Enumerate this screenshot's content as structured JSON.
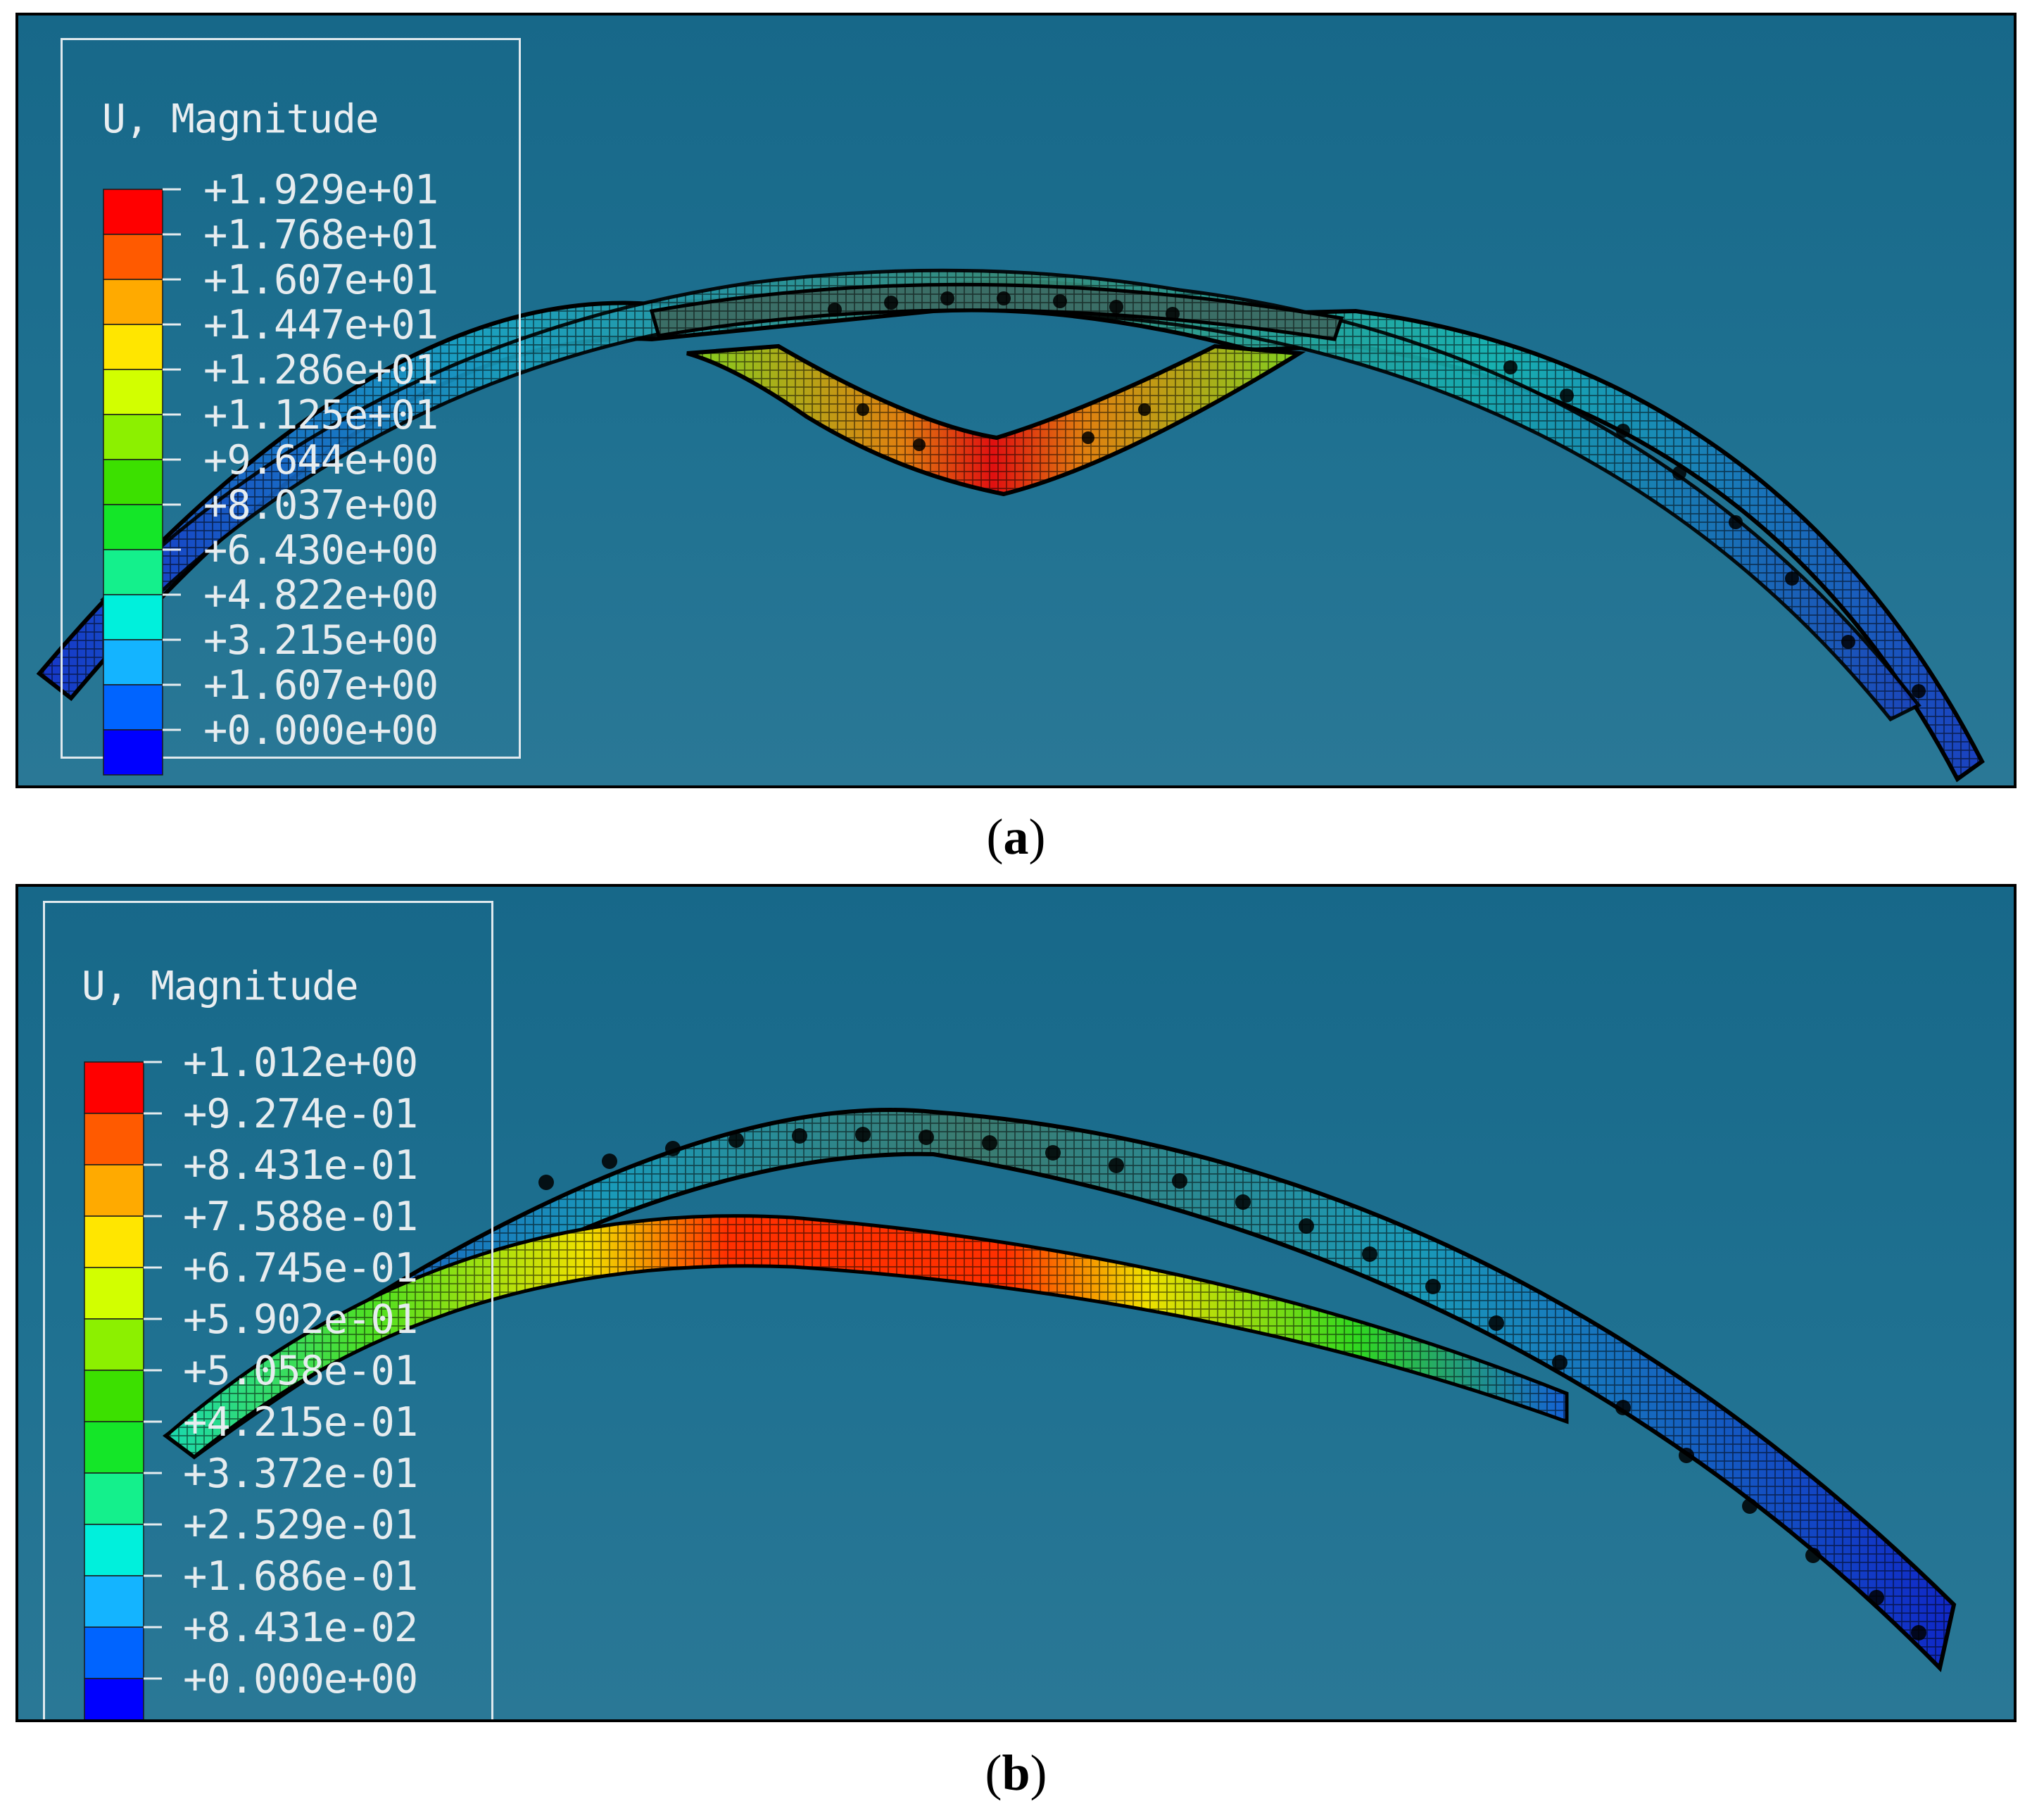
{
  "figure": {
    "panel_a": {
      "caption_letter": "a",
      "legend": {
        "title": "U, Magnitude",
        "values": [
          "+1.929e+01",
          "+1.768e+01",
          "+1.607e+01",
          "+1.447e+01",
          "+1.286e+01",
          "+1.125e+01",
          "+9.644e+00",
          "+8.037e+00",
          "+6.430e+00",
          "+4.822e+00",
          "+3.215e+00",
          "+1.607e+00",
          "+0.000e+00"
        ],
        "colors": [
          "#ff0000",
          "#ff5a00",
          "#ffaa00",
          "#ffe600",
          "#d2ff00",
          "#8cf000",
          "#3ce000",
          "#14e628",
          "#14f08c",
          "#00f0dc",
          "#14b4ff",
          "#0064ff",
          "#0000ff"
        ]
      }
    },
    "panel_b": {
      "caption_letter": "b",
      "legend": {
        "title": "U, Magnitude",
        "values": [
          "+1.012e+00",
          "+9.274e-01",
          "+8.431e-01",
          "+7.588e-01",
          "+6.745e-01",
          "+5.902e-01",
          "+5.058e-01",
          "+4.215e-01",
          "+3.372e-01",
          "+2.529e-01",
          "+1.686e-01",
          "+8.431e-02",
          "+0.000e+00"
        ],
        "colors": [
          "#ff0000",
          "#ff5a00",
          "#ffaa00",
          "#ffe600",
          "#d2ff00",
          "#8cf000",
          "#3ce000",
          "#14e628",
          "#14f08c",
          "#00f0dc",
          "#14b4ff",
          "#0064ff",
          "#0000ff"
        ]
      }
    }
  }
}
